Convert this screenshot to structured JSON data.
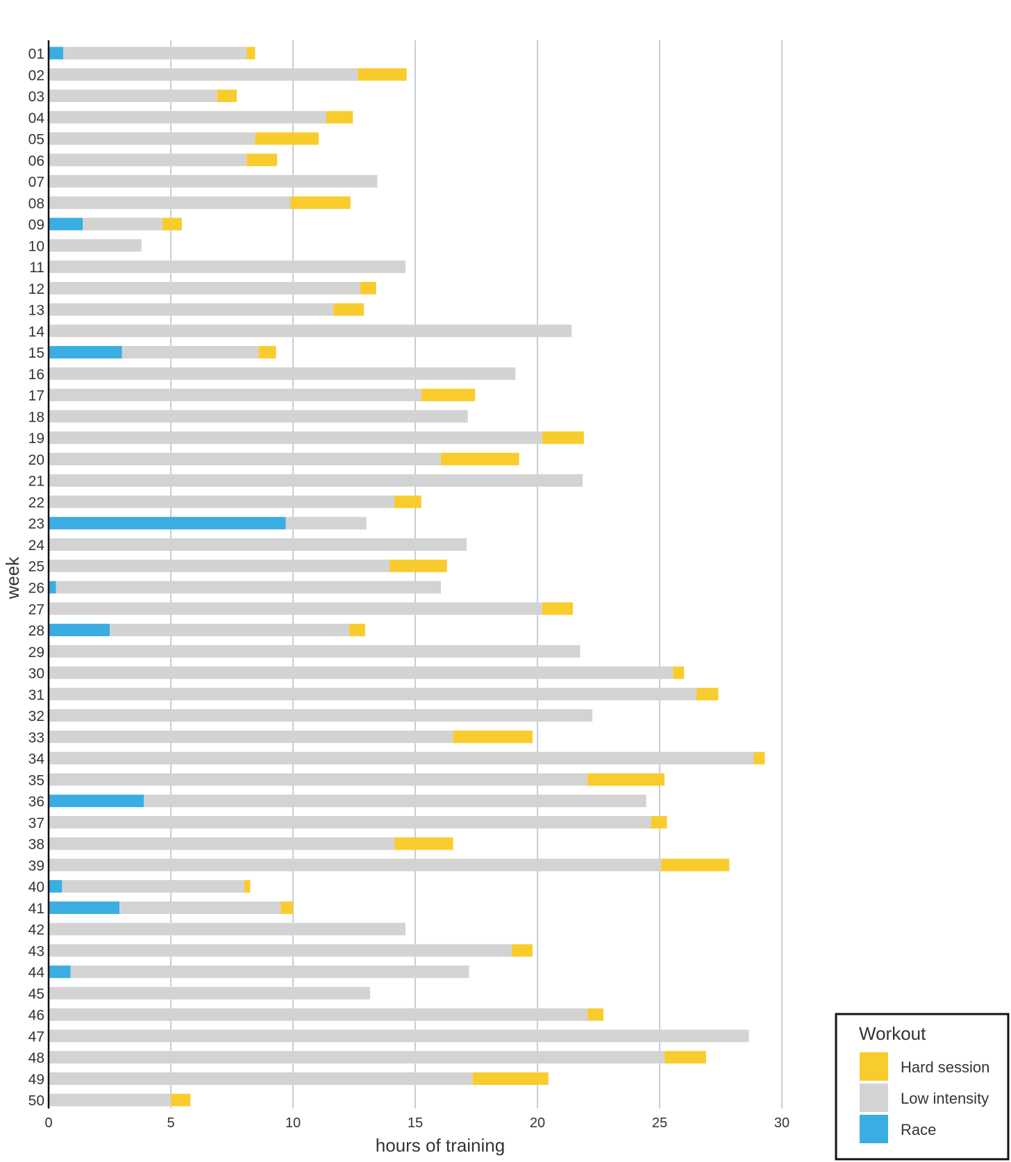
{
  "chart_data": {
    "type": "bar",
    "orientation": "horizontal",
    "stacked": true,
    "title": "",
    "xlabel": "hours of training",
    "ylabel": "week",
    "xlim": [
      0,
      31
    ],
    "xticks": [
      "0",
      "5",
      "10",
      "15",
      "20",
      "25",
      "30"
    ],
    "grid": true,
    "legend_position": "bottom-right",
    "legend_title": "Workout",
    "legend_entries": [
      "Hard session",
      "Low intensity",
      "Race"
    ],
    "colors": {
      "Race": "#3aaee2",
      "Low intensity": "#d3d3d3",
      "Hard session": "#f9cc2e"
    },
    "categories": [
      "01",
      "02",
      "03",
      "04",
      "05",
      "06",
      "07",
      "08",
      "09",
      "10",
      "11",
      "12",
      "13",
      "14",
      "15",
      "16",
      "17",
      "18",
      "19",
      "20",
      "21",
      "22",
      "23",
      "24",
      "25",
      "26",
      "27",
      "28",
      "29",
      "30",
      "31",
      "32",
      "33",
      "34",
      "35",
      "36",
      "37",
      "38",
      "39",
      "40",
      "41",
      "42",
      "43",
      "44",
      "45",
      "46",
      "47",
      "48",
      "49",
      "50"
    ],
    "series": [
      {
        "name": "Race",
        "values": [
          0.6,
          0,
          0,
          0,
          0,
          0,
          0,
          0,
          1.4,
          0,
          0,
          0,
          0,
          0,
          3.0,
          0,
          0,
          0,
          0,
          0,
          0,
          0,
          9.7,
          0,
          0,
          0.3,
          0,
          2.5,
          0,
          0,
          0,
          0,
          0,
          0,
          0,
          3.9,
          0,
          0,
          0,
          0.55,
          2.9,
          0,
          0,
          0.9,
          0,
          0,
          0,
          0,
          0,
          0
        ]
      },
      {
        "name": "Low intensity",
        "values": [
          7.5,
          12.65,
          6.9,
          11.35,
          8.45,
          8.1,
          13.45,
          9.9,
          3.25,
          3.8,
          14.6,
          12.75,
          11.65,
          21.4,
          5.6,
          19.1,
          15.25,
          17.15,
          20.2,
          16.05,
          21.85,
          14.15,
          3.3,
          17.1,
          13.95,
          15.75,
          20.2,
          9.8,
          21.75,
          25.55,
          26.5,
          22.25,
          16.55,
          28.85,
          22.05,
          20.55,
          24.65,
          14.15,
          25.05,
          7.45,
          6.6,
          14.6,
          18.95,
          16.3,
          13.15,
          22.05,
          28.65,
          25.2,
          17.35,
          5.0
        ]
      },
      {
        "name": "Hard session",
        "values": [
          0.35,
          2.0,
          0.8,
          1.1,
          2.6,
          1.25,
          0,
          2.45,
          0.8,
          0,
          0,
          0.65,
          1.25,
          0,
          0.7,
          0,
          2.2,
          0,
          1.7,
          3.2,
          0,
          1.1,
          0,
          0,
          2.35,
          0,
          1.25,
          0.65,
          0,
          0.45,
          0.9,
          0,
          3.25,
          0.45,
          3.15,
          0,
          0.65,
          2.4,
          2.8,
          0.25,
          0.5,
          0,
          0.85,
          0,
          0,
          0.65,
          0,
          1.7,
          3.1,
          0.8
        ]
      }
    ]
  }
}
